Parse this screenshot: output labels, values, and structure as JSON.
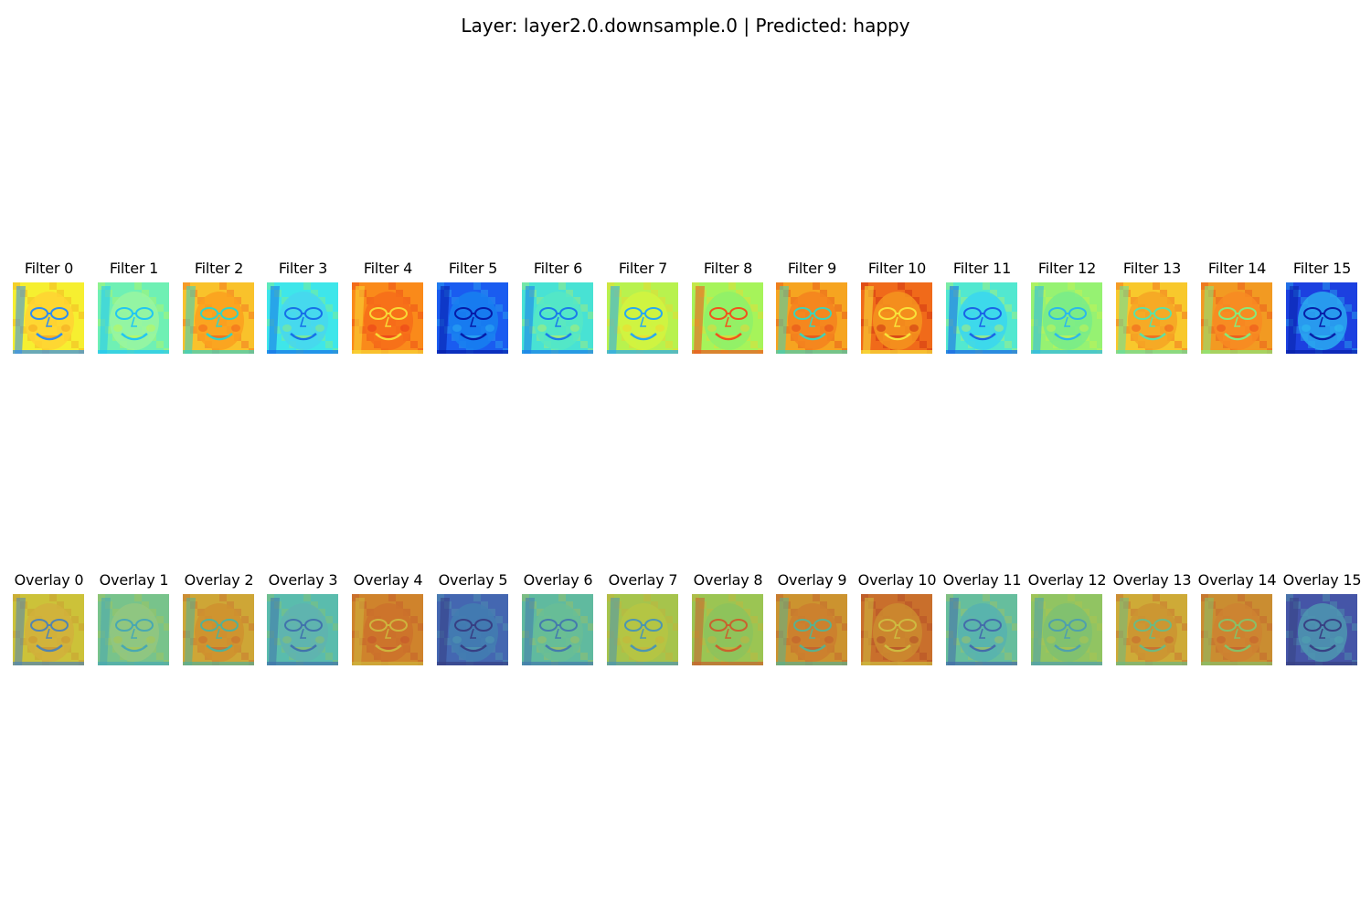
{
  "figure": {
    "title": "Layer: layer2.0.downsample.0 | Predicted: happy"
  },
  "filters": [
    {
      "title": "Filter 0",
      "bg": "#f6ef30",
      "accent": "#f29a1c",
      "line": "#2f8cf0",
      "face": "#ffd233"
    },
    {
      "title": "Filter 1",
      "bg": "#6ff0b4",
      "accent": "#c8f84a",
      "line": "#22c6f2",
      "face": "#9af6a0"
    },
    {
      "title": "Filter 2",
      "bg": "#f9c22b",
      "accent": "#f0541c",
      "line": "#35d2c4",
      "face": "#fca01e"
    },
    {
      "title": "Filter 3",
      "bg": "#3ee6ea",
      "accent": "#9af26a",
      "line": "#1670e8",
      "face": "#48d6ee"
    },
    {
      "title": "Filter 4",
      "bg": "#fa8a1a",
      "accent": "#e6301a",
      "line": "#f8d836",
      "face": "#f66c1a"
    },
    {
      "title": "Filter 5",
      "bg": "#1a5cf0",
      "accent": "#34b8f2",
      "line": "#061ca8",
      "face": "#1880f0"
    },
    {
      "title": "Filter 6",
      "bg": "#48e2d4",
      "accent": "#c6f05a",
      "line": "#1a7cea",
      "face": "#56e8c4"
    },
    {
      "title": "Filter 7",
      "bg": "#b8f24e",
      "accent": "#f8d22c",
      "line": "#28a8f0",
      "face": "#d2f440"
    },
    {
      "title": "Filter 8",
      "bg": "#a6f45a",
      "accent": "#fbd02c",
      "line": "#f0541c",
      "face": "#8ef06a"
    },
    {
      "title": "Filter 9",
      "bg": "#f6a420",
      "accent": "#e23c1a",
      "line": "#40d2b6",
      "face": "#f4821e"
    },
    {
      "title": "Filter 10",
      "bg": "#f06a1a",
      "accent": "#c41a12",
      "line": "#f8e23a",
      "face": "#f4941e"
    },
    {
      "title": "Filter 11",
      "bg": "#52e8d0",
      "accent": "#c8f45a",
      "line": "#1a64e6",
      "face": "#3ad6f0"
    },
    {
      "title": "Filter 12",
      "bg": "#96f272",
      "accent": "#d6f448",
      "line": "#2cb8ea",
      "face": "#78ec8a"
    },
    {
      "title": "Filter 13",
      "bg": "#f8c82c",
      "accent": "#f04a1c",
      "line": "#5ee0a4",
      "face": "#f6a424"
    },
    {
      "title": "Filter 14",
      "bg": "#f29a22",
      "accent": "#e8401a",
      "line": "#88ea7a",
      "face": "#f88a22"
    },
    {
      "title": "Filter 15",
      "bg": "#1c40e0",
      "accent": "#2ec8f0",
      "line": "#0820a8",
      "face": "#2aaaf0"
    }
  ],
  "overlays": [
    {
      "title": "Overlay 0"
    },
    {
      "title": "Overlay 1"
    },
    {
      "title": "Overlay 2"
    },
    {
      "title": "Overlay 3"
    },
    {
      "title": "Overlay 4"
    },
    {
      "title": "Overlay 5"
    },
    {
      "title": "Overlay 6"
    },
    {
      "title": "Overlay 7"
    },
    {
      "title": "Overlay 8"
    },
    {
      "title": "Overlay 9"
    },
    {
      "title": "Overlay 10"
    },
    {
      "title": "Overlay 11"
    },
    {
      "title": "Overlay 12"
    },
    {
      "title": "Overlay 13"
    },
    {
      "title": "Overlay 14"
    },
    {
      "title": "Overlay 15"
    }
  ],
  "colormap": "jet"
}
